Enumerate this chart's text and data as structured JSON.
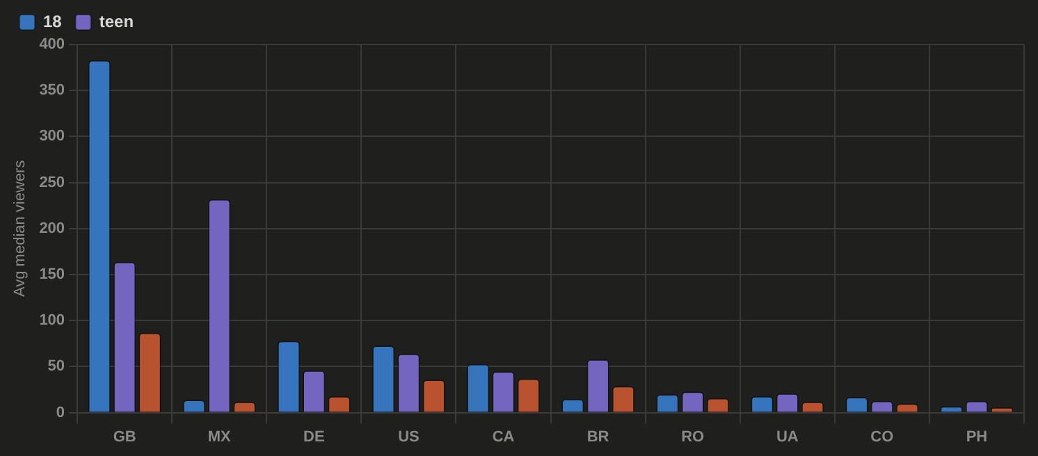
{
  "chart_data": {
    "type": "bar",
    "ylabel": "Avg median viewers",
    "categories": [
      "GB",
      "MX",
      "DE",
      "US",
      "CA",
      "BR",
      "RO",
      "UA",
      "CO",
      "PH"
    ],
    "series": [
      {
        "name": "18",
        "color": "#3674be",
        "values": [
          383,
          14,
          78,
          73,
          53,
          15,
          20,
          18,
          17,
          7
        ]
      },
      {
        "name": "teen",
        "color": "#7466c0",
        "values": [
          164,
          232,
          46,
          64,
          45,
          58,
          23,
          21,
          13,
          13
        ]
      },
      {
        "color": "#b9522f",
        "values": [
          87,
          12,
          18,
          36,
          37,
          29,
          16,
          12,
          10,
          6
        ]
      }
    ],
    "ylim": [
      0,
      400
    ],
    "yticks": [
      0,
      50,
      100,
      150,
      200,
      250,
      300,
      350,
      400
    ],
    "grid": true,
    "legend": "top left"
  }
}
